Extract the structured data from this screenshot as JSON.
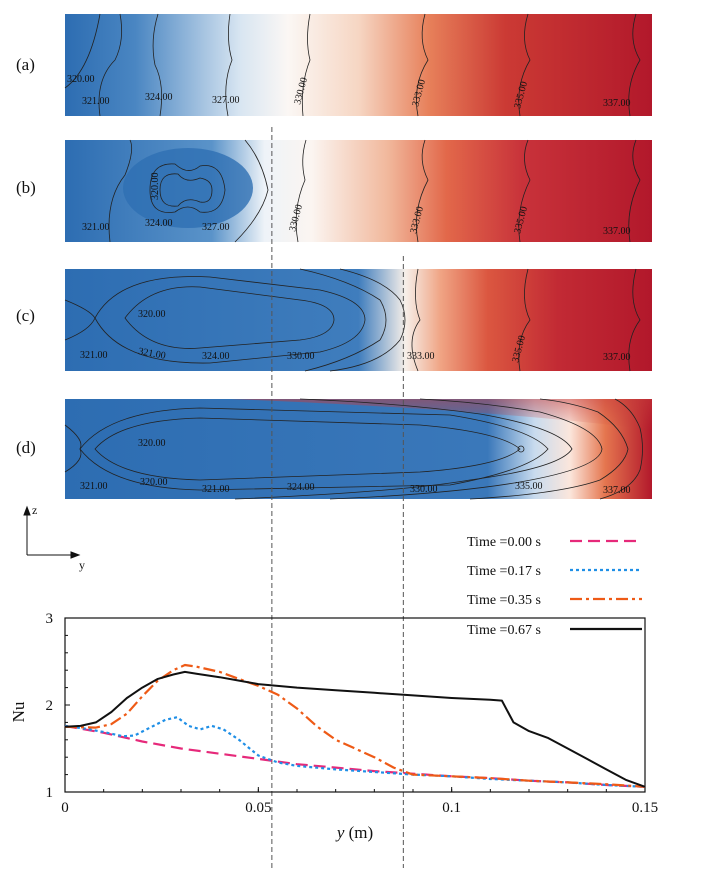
{
  "contour_panels": [
    {
      "label": "(a)",
      "contour_labels": [
        "320.00",
        "321.00",
        "324.00",
        "327.00",
        "330.00",
        "333.00",
        "335.00",
        "337.00"
      ]
    },
    {
      "label": "(b)",
      "contour_labels": [
        "320.00",
        "321.00",
        "324.00",
        "327.00",
        "330.00",
        "333.00",
        "335.00",
        "337.00"
      ]
    },
    {
      "label": "(c)",
      "contour_labels": [
        "320.00",
        "321.00",
        "321.00",
        "324.00",
        "330.00",
        "333.00",
        "335.00",
        "337.00"
      ]
    },
    {
      "label": "(d)",
      "contour_labels": [
        "320.00",
        "321.00",
        "320.00",
        "321.00",
        "324.00",
        "330.00",
        "335.00",
        "337.00"
      ]
    }
  ],
  "colormap": {
    "cold": "#2b6cb0",
    "mid": "#f7f7f7",
    "hot": "#b2182b"
  },
  "axes_indicator": {
    "z": "z",
    "y": "y"
  },
  "chart_data": {
    "type": "line",
    "xlabel_var": "y",
    "xlabel_unit": " (m)",
    "ylabel": "Nu",
    "xlim": [
      0,
      0.15
    ],
    "ylim": [
      1,
      3
    ],
    "xticks": [
      {
        "value": 0,
        "label": "0"
      },
      {
        "value": 0.05,
        "label": "0.05"
      },
      {
        "value": 0.1,
        "label": "0.1"
      },
      {
        "value": 0.15,
        "label": "0.15"
      }
    ],
    "yticks": [
      {
        "value": 1,
        "label": "1"
      },
      {
        "value": 2,
        "label": "2"
      },
      {
        "value": 3,
        "label": "3"
      }
    ],
    "reference_lines": [
      0.0535,
      0.0875
    ],
    "legend_position": "top-right",
    "series": [
      {
        "name": "Time =0.00 s",
        "color": "#e6297a",
        "dash": "12,6",
        "x": [
          0,
          0.01,
          0.02,
          0.03,
          0.04,
          0.05,
          0.06,
          0.07,
          0.08,
          0.09,
          0.1,
          0.11,
          0.12,
          0.13,
          0.14,
          0.15
        ],
        "y": [
          1.76,
          1.68,
          1.58,
          1.5,
          1.44,
          1.38,
          1.32,
          1.28,
          1.24,
          1.21,
          1.18,
          1.16,
          1.13,
          1.11,
          1.08,
          1.06
        ]
      },
      {
        "name": "Time =0.17 s",
        "color": "#1f8fe6",
        "dash": "3,3",
        "x": [
          0,
          0.005,
          0.01,
          0.015,
          0.018,
          0.022,
          0.026,
          0.029,
          0.032,
          0.035,
          0.038,
          0.041,
          0.045,
          0.05,
          0.055,
          0.06,
          0.07,
          0.08,
          0.09,
          0.1,
          0.11,
          0.12,
          0.13,
          0.14,
          0.15
        ],
        "y": [
          1.76,
          1.73,
          1.69,
          1.64,
          1.65,
          1.74,
          1.83,
          1.86,
          1.76,
          1.72,
          1.76,
          1.72,
          1.6,
          1.42,
          1.34,
          1.3,
          1.26,
          1.23,
          1.2,
          1.18,
          1.15,
          1.13,
          1.11,
          1.08,
          1.06
        ]
      },
      {
        "name": "Time =0.35 s",
        "color": "#ee5a16",
        "dash": "12,4,3,4",
        "x": [
          0,
          0.008,
          0.012,
          0.016,
          0.02,
          0.024,
          0.028,
          0.031,
          0.034,
          0.04,
          0.045,
          0.05,
          0.055,
          0.06,
          0.065,
          0.07,
          0.075,
          0.08,
          0.085,
          0.09,
          0.1,
          0.11,
          0.12,
          0.13,
          0.14,
          0.15
        ],
        "y": [
          1.75,
          1.74,
          1.78,
          1.9,
          2.1,
          2.28,
          2.4,
          2.46,
          2.44,
          2.38,
          2.3,
          2.22,
          2.12,
          1.96,
          1.76,
          1.6,
          1.5,
          1.4,
          1.28,
          1.2,
          1.18,
          1.16,
          1.13,
          1.11,
          1.09,
          1.06
        ]
      },
      {
        "name": "Time =0.67 s",
        "color": "#111111",
        "dash": "",
        "x": [
          0,
          0.004,
          0.008,
          0.012,
          0.016,
          0.02,
          0.024,
          0.028,
          0.031,
          0.034,
          0.04,
          0.045,
          0.05,
          0.06,
          0.07,
          0.08,
          0.09,
          0.1,
          0.11,
          0.113,
          0.116,
          0.12,
          0.125,
          0.13,
          0.135,
          0.14,
          0.145,
          0.15
        ],
        "y": [
          1.75,
          1.76,
          1.8,
          1.92,
          2.08,
          2.2,
          2.3,
          2.35,
          2.38,
          2.36,
          2.32,
          2.28,
          2.24,
          2.2,
          2.17,
          2.14,
          2.11,
          2.08,
          2.06,
          2.05,
          1.8,
          1.7,
          1.62,
          1.5,
          1.38,
          1.26,
          1.14,
          1.06
        ]
      }
    ]
  }
}
